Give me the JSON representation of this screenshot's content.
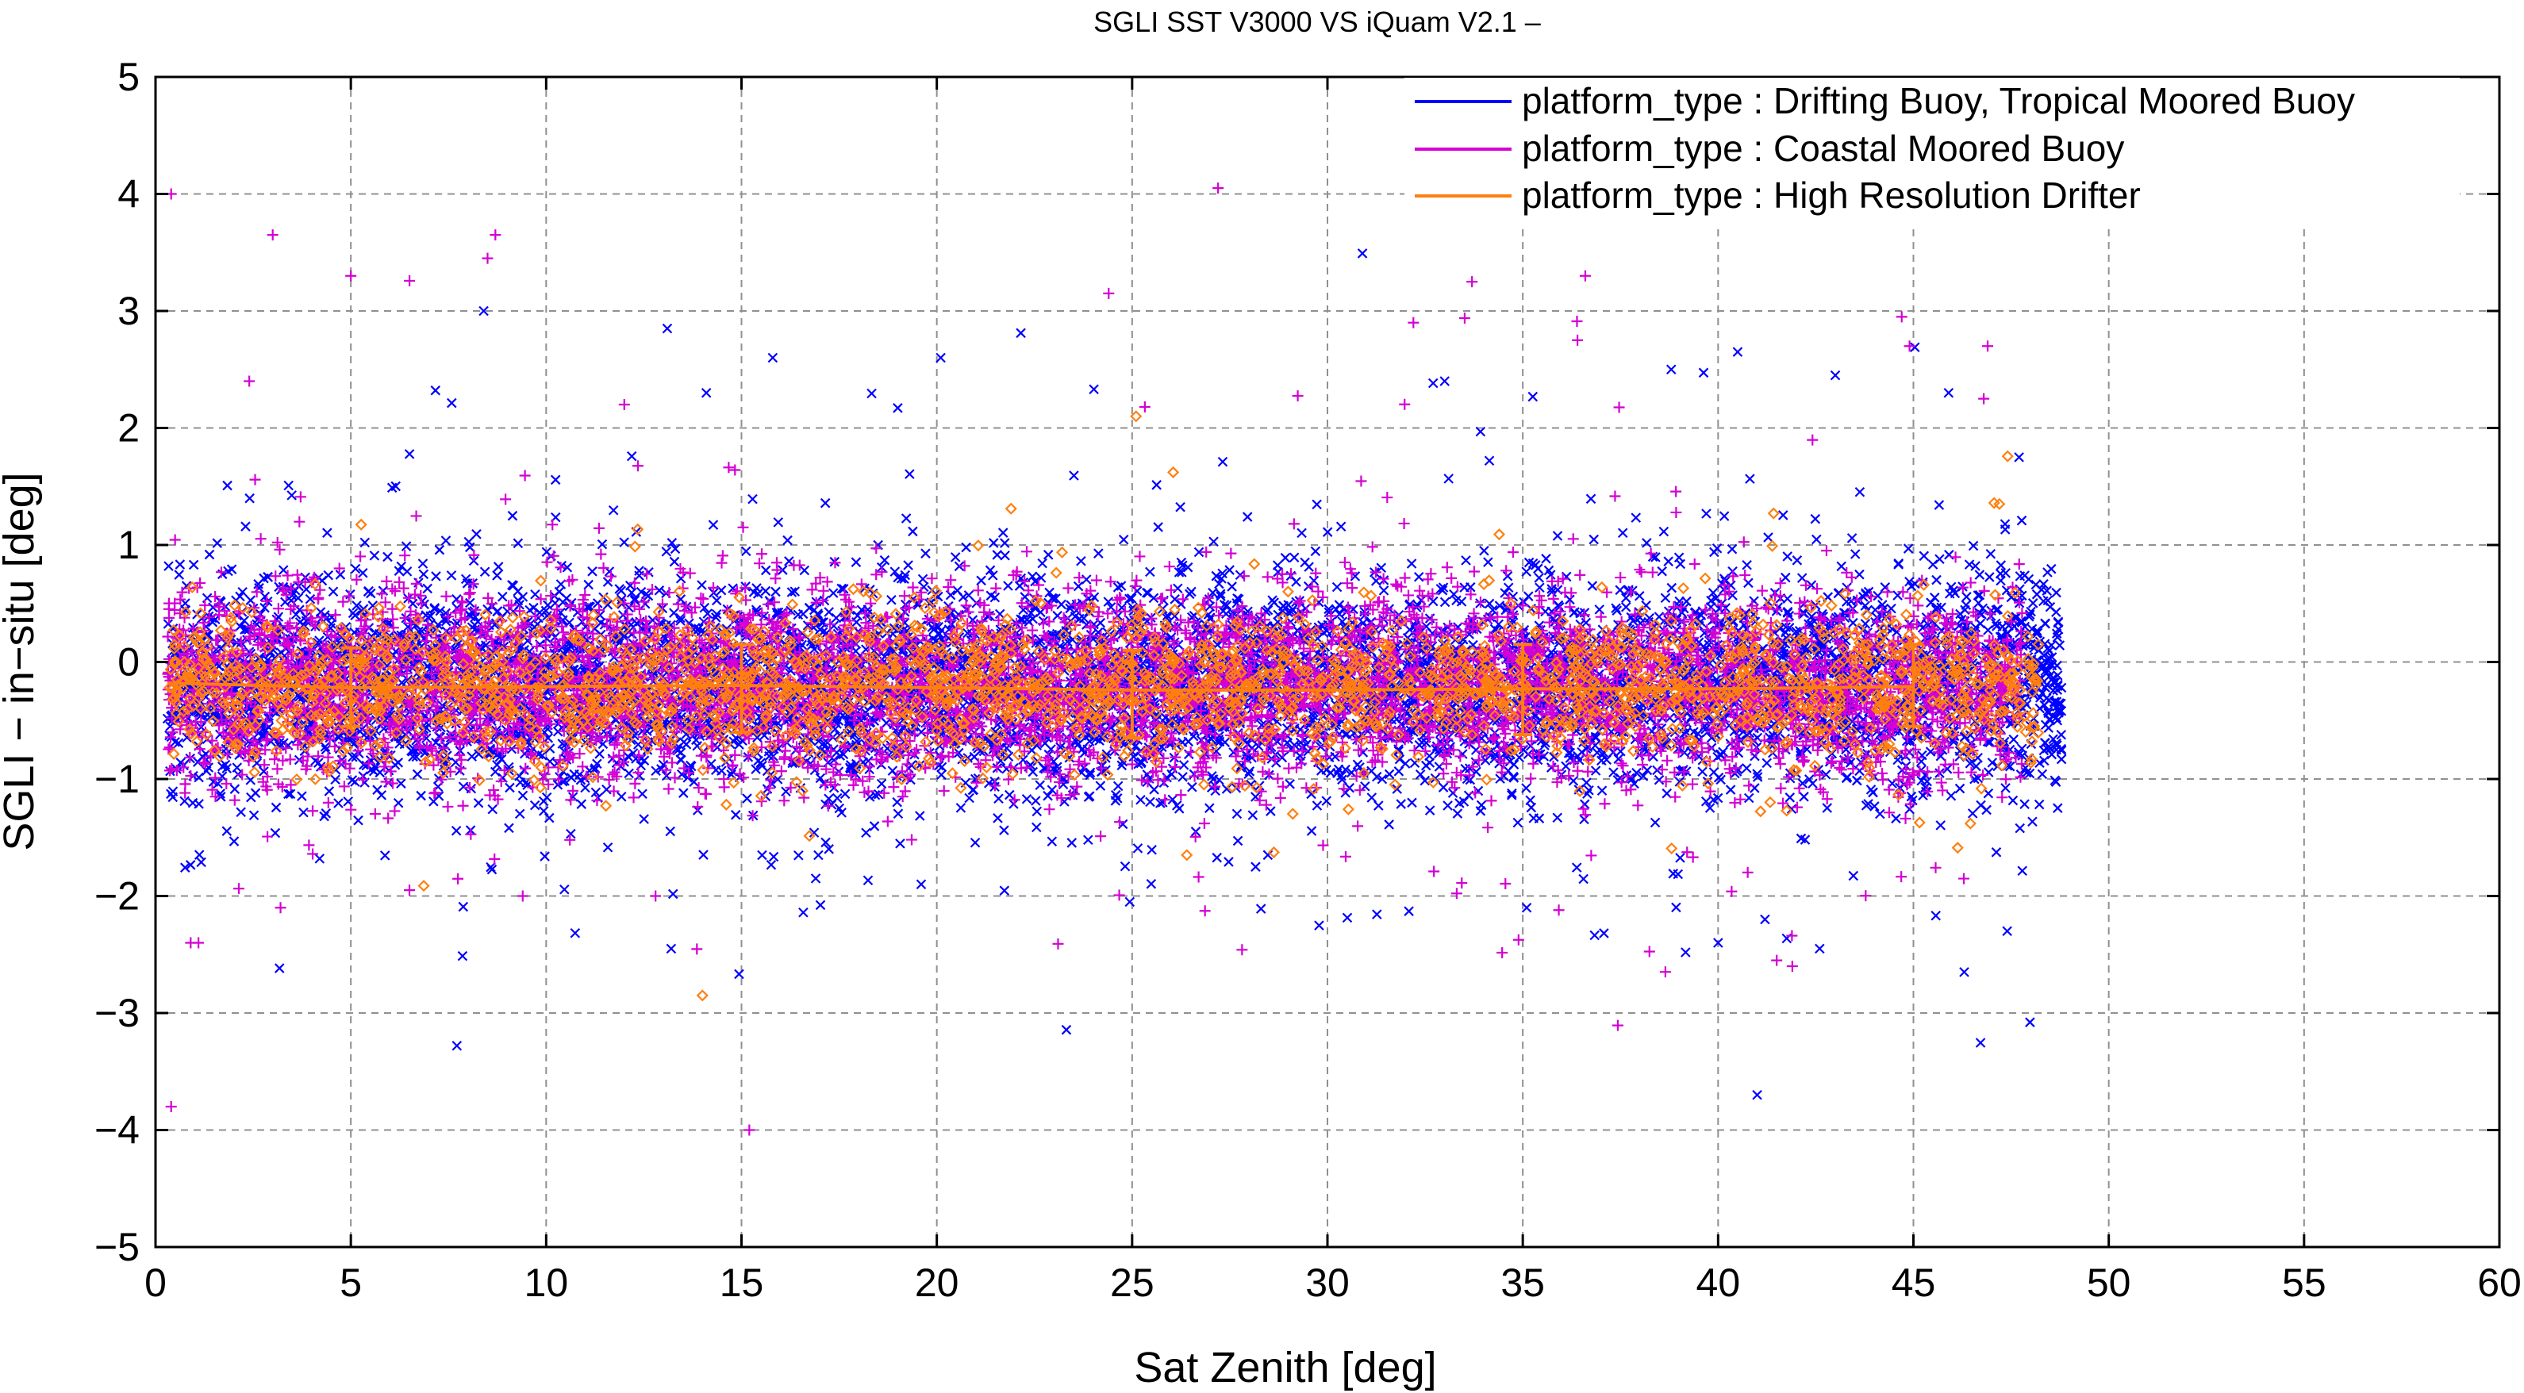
{
  "chart_data": {
    "type": "scatter",
    "title": "SGLI SST V3000 VS iQuam V2.1  –",
    "xlabel": "Sat Zenith [deg]",
    "ylabel": "SGLI − in−situ [deg]",
    "xlim": [
      0,
      60
    ],
    "ylim": [
      -5,
      5
    ],
    "x_ticks": [
      0,
      5,
      10,
      15,
      20,
      25,
      30,
      35,
      40,
      45,
      50,
      55,
      60
    ],
    "y_ticks": [
      -5,
      -4,
      -3,
      -2,
      -1,
      0,
      1,
      2,
      3,
      4,
      5
    ],
    "x_tick_labels": [
      "0",
      "5",
      "10",
      "15",
      "20",
      "25",
      "30",
      "35",
      "40",
      "45",
      "50",
      "55",
      "60"
    ],
    "y_tick_labels": [
      "−5",
      "−4",
      "−3",
      "−2",
      "−1",
      "0",
      "1",
      "2",
      "3",
      "4",
      "5"
    ],
    "grid": true,
    "legend_position": "top-right",
    "series": [
      {
        "name": "platform_type : Drifting Buoy, Tropical Moored Buoy",
        "color": "#0000ff",
        "marker": "x",
        "x_range": [
          0.3,
          48.8
        ],
        "density_band": [
          -1.0,
          0.6
        ],
        "mean_bias": -0.2,
        "stddev_approx": 0.45,
        "outliers": [
          {
            "x": 8.4,
            "y": 3.0
          },
          {
            "x": 13.1,
            "y": 2.85
          },
          {
            "x": 14.1,
            "y": 2.3
          },
          {
            "x": 15.8,
            "y": 2.6
          },
          {
            "x": 20.1,
            "y": 2.6
          },
          {
            "x": 33.0,
            "y": 2.4
          },
          {
            "x": 38.8,
            "y": 2.5
          },
          {
            "x": 40.5,
            "y": 2.65
          },
          {
            "x": 43.0,
            "y": 2.45
          },
          {
            "x": 45.9,
            "y": 2.3
          },
          {
            "x": 13.2,
            "y": -2.45
          },
          {
            "x": 35.1,
            "y": -2.1
          },
          {
            "x": 40.0,
            "y": -2.4
          },
          {
            "x": 41.0,
            "y": -3.7
          },
          {
            "x": 41.2,
            "y": -2.2
          },
          {
            "x": 42.6,
            "y": -2.45
          },
          {
            "x": 46.3,
            "y": -2.65
          },
          {
            "x": 47.4,
            "y": -2.3
          },
          {
            "x": 19.6,
            "y": -1.9
          },
          {
            "x": 16.9,
            "y": -1.85
          }
        ]
      },
      {
        "name": "platform_type : Coastal Moored Buoy",
        "color": "#d400d4",
        "marker": "+",
        "x_range": [
          0.3,
          47.8
        ],
        "density_band": [
          -0.9,
          0.6
        ],
        "mean_bias": -0.2,
        "stddev_approx": 0.4,
        "outliers": [
          {
            "x": 0.4,
            "y": 4.0
          },
          {
            "x": 0.4,
            "y": -3.8
          },
          {
            "x": 0.9,
            "y": -2.4
          },
          {
            "x": 1.1,
            "y": -2.4
          },
          {
            "x": 2.4,
            "y": 2.4
          },
          {
            "x": 3.0,
            "y": 3.65
          },
          {
            "x": 3.2,
            "y": -2.1
          },
          {
            "x": 5.0,
            "y": 3.3
          },
          {
            "x": 6.5,
            "y": -1.95
          },
          {
            "x": 8.5,
            "y": 3.45
          },
          {
            "x": 8.7,
            "y": 3.65
          },
          {
            "x": 9.4,
            "y": -2.0
          },
          {
            "x": 12.0,
            "y": 2.2
          },
          {
            "x": 12.8,
            "y": -2.0
          },
          {
            "x": 15.2,
            "y": -4.0
          },
          {
            "x": 24.4,
            "y": 3.15
          },
          {
            "x": 27.2,
            "y": 4.05
          },
          {
            "x": 32.2,
            "y": 2.9
          },
          {
            "x": 33.7,
            "y": 3.25
          },
          {
            "x": 36.6,
            "y": 3.3
          },
          {
            "x": 36.4,
            "y": 2.75
          },
          {
            "x": 41.5,
            "y": -2.55
          },
          {
            "x": 41.9,
            "y": -2.6
          },
          {
            "x": 44.7,
            "y": 2.95
          },
          {
            "x": 44.9,
            "y": 2.7
          },
          {
            "x": 46.9,
            "y": 2.7
          },
          {
            "x": 46.8,
            "y": 2.25
          }
        ]
      },
      {
        "name": "platform_type : High Resolution Drifter",
        "color": "#ff7f0e",
        "marker": "diamond",
        "x_range": [
          0.3,
          48.2
        ],
        "density_band": [
          -0.7,
          0.4
        ],
        "mean_bias": -0.2,
        "stddev_approx": 0.3,
        "outliers": [
          {
            "x": 14.0,
            "y": -2.85
          },
          {
            "x": 25.1,
            "y": 2.1
          },
          {
            "x": 26.4,
            "y": -1.65
          },
          {
            "x": 47.2,
            "y": 1.35
          },
          {
            "x": 48.2,
            "y": 0.15
          }
        ],
        "mean_line": [
          {
            "x": 0.3,
            "y": -0.18
          },
          {
            "x": 5.0,
            "y": -0.22
          },
          {
            "x": 10.0,
            "y": -0.21
          },
          {
            "x": 15.0,
            "y": -0.2
          },
          {
            "x": 20.0,
            "y": -0.22
          },
          {
            "x": 25.0,
            "y": -0.24
          },
          {
            "x": 30.0,
            "y": -0.24
          },
          {
            "x": 35.0,
            "y": -0.23
          },
          {
            "x": 40.0,
            "y": -0.23
          },
          {
            "x": 45.0,
            "y": -0.21
          }
        ],
        "error_bars": [
          {
            "x": 5.0,
            "y": -0.2,
            "low": -0.55,
            "high": 0.12
          },
          {
            "x": 15.0,
            "y": -0.2,
            "low": -0.6,
            "high": 0.15
          },
          {
            "x": 25.0,
            "y": -0.25,
            "low": -0.65,
            "high": 0.1
          },
          {
            "x": 35.0,
            "y": -0.25,
            "low": -0.62,
            "high": 0.15
          },
          {
            "x": 45.0,
            "y": -0.2,
            "low": -0.55,
            "high": 0.15
          }
        ]
      }
    ]
  }
}
